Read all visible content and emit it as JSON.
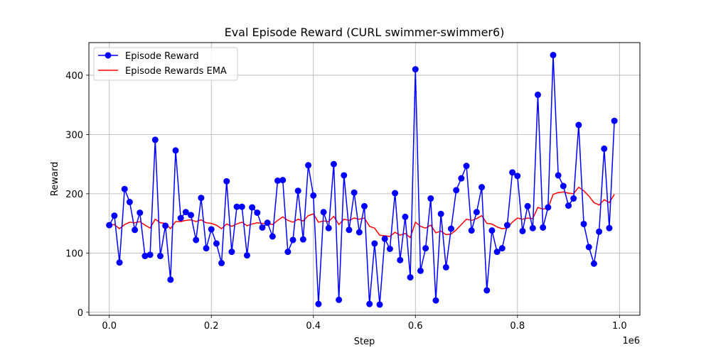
{
  "chart_data": {
    "type": "line",
    "title": "Eval Episode Reward (CURL swimmer-swimmer6)",
    "xlabel": "Step",
    "ylabel": "Reward",
    "x_offset_label": "1e6",
    "xlim": [
      -0.04,
      1.04
    ],
    "ylim": [
      -5,
      455
    ],
    "xticks": [
      0.0,
      0.2,
      0.4,
      0.6,
      0.8,
      1.0
    ],
    "xtick_labels": [
      "0.0",
      "0.2",
      "0.4",
      "0.6",
      "0.8",
      "1.0"
    ],
    "yticks": [
      0,
      100,
      200,
      300,
      400
    ],
    "ytick_labels": [
      "0",
      "100",
      "200",
      "300",
      "400"
    ],
    "grid": true,
    "legend_position": "top-left",
    "x": [
      0.0,
      0.01,
      0.02,
      0.03,
      0.04,
      0.05,
      0.06,
      0.07,
      0.08,
      0.09,
      0.1,
      0.11,
      0.12,
      0.13,
      0.14,
      0.15,
      0.16,
      0.17,
      0.18,
      0.19,
      0.2,
      0.21,
      0.22,
      0.23,
      0.24,
      0.25,
      0.26,
      0.27,
      0.28,
      0.29,
      0.3,
      0.31,
      0.32,
      0.33,
      0.34,
      0.35,
      0.36,
      0.37,
      0.38,
      0.39,
      0.4,
      0.41,
      0.42,
      0.43,
      0.44,
      0.45,
      0.46,
      0.47,
      0.48,
      0.49,
      0.5,
      0.51,
      0.52,
      0.53,
      0.54,
      0.55,
      0.56,
      0.57,
      0.58,
      0.59,
      0.6,
      0.61,
      0.62,
      0.63,
      0.64,
      0.65,
      0.66,
      0.67,
      0.68,
      0.69,
      0.7,
      0.71,
      0.72,
      0.73,
      0.74,
      0.75,
      0.76,
      0.77,
      0.78,
      0.79,
      0.8,
      0.81,
      0.82,
      0.83,
      0.84,
      0.85,
      0.86,
      0.87,
      0.88,
      0.89,
      0.9,
      0.91,
      0.92,
      0.93,
      0.94,
      0.95,
      0.96,
      0.97,
      0.98,
      0.99
    ],
    "series": [
      {
        "name": "Episode Reward",
        "color": "#0000ff",
        "marker": "circle",
        "values": [
          147,
          163,
          84,
          208,
          186,
          139,
          168,
          95,
          97,
          291,
          95,
          146,
          55,
          273,
          159,
          169,
          164,
          122,
          193,
          108,
          140,
          116,
          83,
          221,
          102,
          178,
          178,
          96,
          177,
          168,
          143,
          151,
          128,
          222,
          223,
          102,
          122,
          205,
          123,
          248,
          197,
          14,
          169,
          142,
          250,
          21,
          231,
          139,
          202,
          135,
          179,
          14,
          116,
          13,
          124,
          107,
          201,
          88,
          161,
          59,
          410,
          70,
          108,
          192,
          20,
          166,
          76,
          141,
          206,
          226,
          247,
          138,
          169,
          211,
          37,
          138,
          102,
          108,
          147,
          236,
          230,
          137,
          179,
          142,
          367,
          143,
          177,
          434,
          231,
          213,
          180,
          192,
          316,
          149,
          110,
          82,
          136,
          276,
          142,
          323
        ]
      },
      {
        "name": "Episode Rewards EMA",
        "color": "#ff0000",
        "marker": "none",
        "values": [
          147,
          148,
          141,
          148,
          152,
          151,
          153,
          147,
          142,
          157,
          151,
          150,
          141,
          153,
          153,
          155,
          156,
          153,
          156,
          151,
          150,
          147,
          141,
          149,
          145,
          149,
          152,
          146,
          149,
          151,
          150,
          150,
          148,
          155,
          161,
          155,
          152,
          157,
          154,
          163,
          166,
          152,
          154,
          153,
          162,
          148,
          157,
          155,
          159,
          157,
          159,
          145,
          142,
          130,
          129,
          128,
          135,
          130,
          133,
          126,
          152,
          145,
          142,
          147,
          134,
          137,
          131,
          132,
          139,
          148,
          157,
          155,
          158,
          163,
          150,
          149,
          144,
          141,
          142,
          152,
          159,
          157,
          159,
          158,
          177,
          174,
          176,
          199,
          202,
          203,
          201,
          200,
          211,
          205,
          196,
          185,
          181,
          190,
          185,
          199
        ]
      }
    ]
  }
}
